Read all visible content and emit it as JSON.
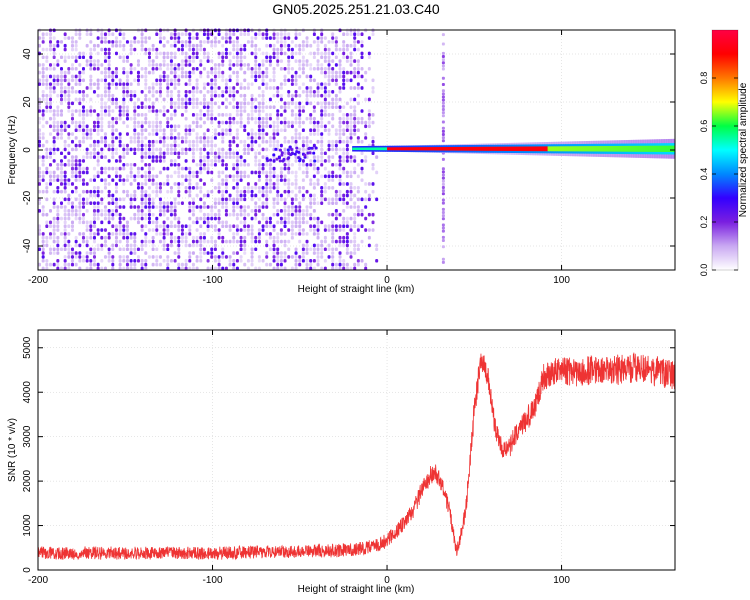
{
  "figure": {
    "title": "GN05.2025.251.21.03.C40"
  },
  "chart_data": [
    {
      "type": "heatmap",
      "title": "GN05.2025.251.21.03.C40",
      "xlabel": "Height of straight line (km)",
      "ylabel": "Frequency (Hz)",
      "xlim": [
        -200,
        165
      ],
      "ylim": [
        -50,
        50
      ],
      "xticks": [
        -200,
        -100,
        0,
        100
      ],
      "xtick_labels": [
        "-200",
        "-100",
        "0",
        "100"
      ],
      "yticks": [
        -40,
        -20,
        0,
        20,
        40
      ],
      "ytick_labels": [
        "-40",
        "-20",
        "0",
        "20",
        "40"
      ],
      "colorbar": {
        "label": "Normalized spectral amplitude",
        "range": [
          0.0,
          1.0
        ],
        "ticks": [
          0.0,
          0.2,
          0.4,
          0.6,
          0.8
        ],
        "tick_labels": [
          "0.0",
          "0.2",
          "0.4",
          "0.6",
          "0.8"
        ],
        "colormap": [
          "#ffffff",
          "#c9a8f2",
          "#7a1fe0",
          "#3300ff",
          "#0088ff",
          "#00ffff",
          "#00ff44",
          "#ffff00",
          "#ff7700",
          "#ff0000",
          "#ff0044"
        ]
      },
      "regions": [
        {
          "kind": "broadband_noise",
          "x_range": [
            -200,
            -5
          ],
          "freq_range": [
            -50,
            50
          ],
          "amplitude": 0.1
        },
        {
          "kind": "narrowband_line",
          "x_range": [
            -20,
            165
          ],
          "frequency": 0.5,
          "amplitude": 0.95
        },
        {
          "kind": "vertical_stripe",
          "x": 32,
          "freq_range": [
            -50,
            50
          ],
          "amplitude": 0.1
        },
        {
          "kind": "blob",
          "x": -65,
          "frequency": 0,
          "amplitude": 0.25
        }
      ],
      "grid": true
    },
    {
      "type": "line",
      "xlabel": "Height of straight line (km)",
      "ylabel": "SNR (10 * v/v)",
      "xlim": [
        -200,
        165
      ],
      "ylim": [
        0,
        5400
      ],
      "xticks": [
        -200,
        -100,
        0,
        100
      ],
      "xtick_labels": [
        "-200",
        "-100",
        "0",
        "100"
      ],
      "yticks": [
        0,
        1000,
        2000,
        3000,
        4000,
        5000
      ],
      "ytick_labels": [
        "0",
        "1000",
        "2000",
        "3000",
        "4000",
        "5000"
      ],
      "grid": true,
      "series": [
        {
          "color": "#ee3333",
          "x": [
            -200,
            -150,
            -100,
            -50,
            -20,
            -5,
            0,
            5,
            10,
            15,
            20,
            25,
            28,
            32,
            36,
            40,
            45,
            50,
            54,
            58,
            62,
            66,
            70,
            75,
            80,
            85,
            90,
            100,
            110,
            120,
            130,
            140,
            150,
            165
          ],
          "y": [
            380,
            380,
            380,
            420,
            450,
            550,
            680,
            850,
            1050,
            1350,
            1800,
            2150,
            2200,
            1900,
            1300,
            400,
            1300,
            3600,
            4800,
            4300,
            3200,
            2700,
            2750,
            3150,
            3400,
            3700,
            4350,
            4500,
            4450,
            4500,
            4500,
            4550,
            4500,
            4400
          ],
          "noise_amplitude": [
            150,
            150,
            150,
            150,
            160,
            160,
            170,
            180,
            190,
            200,
            220,
            220,
            220,
            210,
            190,
            150,
            200,
            300,
            280,
            260,
            250,
            240,
            240,
            250,
            270,
            290,
            320,
            340,
            350,
            350,
            350,
            350,
            350,
            350
          ]
        }
      ]
    }
  ]
}
